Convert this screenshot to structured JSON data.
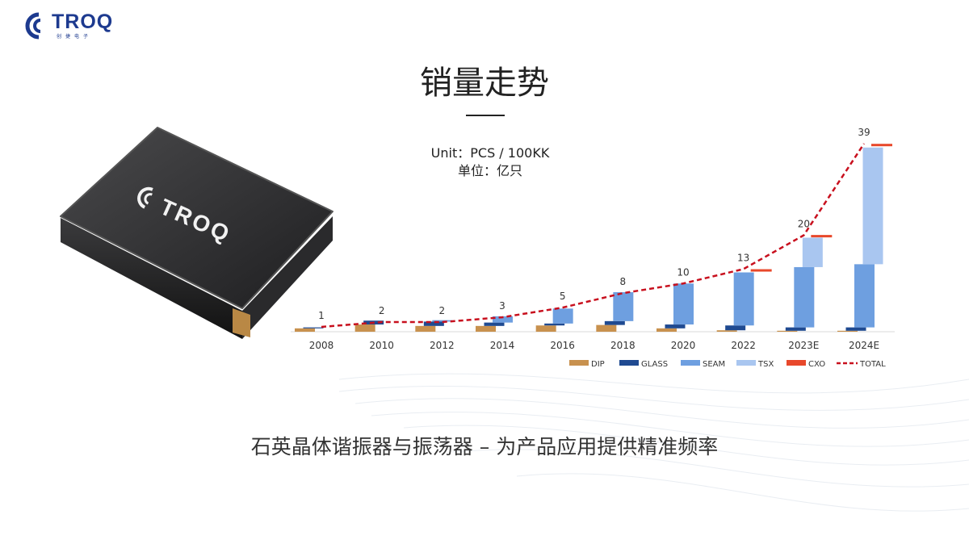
{
  "logo": {
    "text": "TROQ",
    "subtext": "创捷电子"
  },
  "title": "销量走势",
  "unit_en": "Unit：PCS / 100KK",
  "unit_cn": "单位：亿只",
  "product_logo": "TROQ",
  "subtitle": "石英晶体谐振器与振荡器 – 为产品应用提供精准频率",
  "chart_data": {
    "type": "bar",
    "layout": "stacked-staggered with total line",
    "categories": [
      "2008",
      "2010",
      "2012",
      "2014",
      "2016",
      "2018",
      "2020",
      "2022",
      "2023E",
      "2024E"
    ],
    "series": [
      {
        "name": "DIP",
        "color": "#c8914e",
        "values": [
          0.7,
          1.5,
          1.2,
          1.2,
          1.3,
          1.4,
          0.7,
          0.3,
          0.2,
          0.2
        ]
      },
      {
        "name": "GLASS",
        "color": "#1f4a91",
        "values": [
          0.2,
          0.8,
          0.9,
          0.7,
          0.4,
          0.8,
          0.8,
          1.0,
          0.7,
          0.7
        ]
      },
      {
        "name": "SEAM",
        "color": "#6e9fe0",
        "values": [
          0,
          0,
          0.3,
          1.3,
          3.1,
          6.0,
          8.5,
          11.0,
          12.5,
          13.1
        ]
      },
      {
        "name": "TSX",
        "color": "#a9c6f0",
        "values": [
          0,
          0,
          0,
          0,
          0,
          0,
          0,
          0,
          6.1,
          24.2
        ]
      },
      {
        "name": "CXO",
        "color": "#e8482b",
        "values": [
          0,
          0,
          0,
          0,
          0,
          0,
          0,
          0.5,
          0.4,
          0.6
        ]
      }
    ],
    "total": {
      "name": "TOTAL",
      "color": "#c8101e",
      "values": [
        1,
        2,
        2,
        3,
        5,
        8,
        10,
        13,
        20,
        39
      ],
      "labels": [
        "1",
        "2",
        "2",
        "3",
        "5",
        "8",
        "10",
        "13",
        "20",
        "39"
      ]
    },
    "ylim": [
      0,
      40
    ],
    "grid": false,
    "legend": "bottom-right"
  }
}
